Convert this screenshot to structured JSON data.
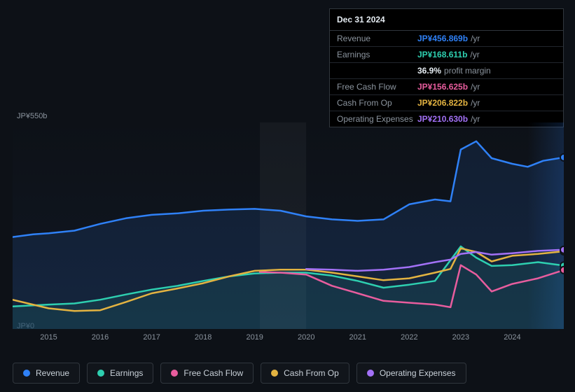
{
  "tooltip": {
    "date": "Dec 31 2024",
    "rows": [
      {
        "label": "Revenue",
        "value": "JP¥456.869b",
        "unit": "/yr",
        "color": "#2f81f7"
      },
      {
        "label": "Earnings",
        "value": "JP¥168.611b",
        "unit": "/yr",
        "color": "#2ecfb0"
      },
      {
        "label": "Free Cash Flow",
        "value": "JP¥156.625b",
        "unit": "/yr",
        "color": "#e85d9e"
      },
      {
        "label": "Cash From Op",
        "value": "JP¥206.822b",
        "unit": "/yr",
        "color": "#e3b341"
      },
      {
        "label": "Operating Expenses",
        "value": "JP¥210.630b",
        "unit": "/yr",
        "color": "#a371f7"
      }
    ],
    "profit_pct": "36.9%",
    "profit_label": "profit margin"
  },
  "chart": {
    "type": "line",
    "ylabel_top": "JP¥550b",
    "ylabel_bottom": "JP¥0",
    "ylim": [
      0,
      550
    ],
    "xlim": [
      2014.3,
      2025.0
    ],
    "xtick_years": [
      2015,
      2016,
      2017,
      2018,
      2019,
      2020,
      2021,
      2022,
      2023,
      2024
    ],
    "line_width": 2.5,
    "highlight_band": {
      "from": 2019.1,
      "to": 2020.0,
      "fill": "rgba(255,255,255,0.04)"
    },
    "end_highlight": {
      "from": 2024.3,
      "to": 2025.0
    },
    "background_color": "#0d1117",
    "series": [
      {
        "name": "Revenue",
        "color": "#2f81f7",
        "fill_opacity": 0.12,
        "points": [
          [
            2014.3,
            245
          ],
          [
            2014.7,
            252
          ],
          [
            2015.0,
            255
          ],
          [
            2015.5,
            262
          ],
          [
            2016.0,
            280
          ],
          [
            2016.5,
            295
          ],
          [
            2017.0,
            304
          ],
          [
            2017.5,
            308
          ],
          [
            2018.0,
            315
          ],
          [
            2018.5,
            318
          ],
          [
            2019.0,
            320
          ],
          [
            2019.5,
            315
          ],
          [
            2020.0,
            300
          ],
          [
            2020.5,
            292
          ],
          [
            2021.0,
            288
          ],
          [
            2021.5,
            292
          ],
          [
            2022.0,
            332
          ],
          [
            2022.5,
            345
          ],
          [
            2022.8,
            340
          ],
          [
            2023.0,
            478
          ],
          [
            2023.3,
            500
          ],
          [
            2023.6,
            455
          ],
          [
            2024.0,
            440
          ],
          [
            2024.3,
            432
          ],
          [
            2024.6,
            448
          ],
          [
            2025.0,
            457
          ]
        ],
        "marker_end": true
      },
      {
        "name": "Earnings",
        "color": "#2ecfb0",
        "fill_opacity": 0.1,
        "points": [
          [
            2014.3,
            60
          ],
          [
            2015.0,
            65
          ],
          [
            2015.5,
            68
          ],
          [
            2016.0,
            78
          ],
          [
            2016.5,
            92
          ],
          [
            2017.0,
            105
          ],
          [
            2017.5,
            115
          ],
          [
            2018.0,
            128
          ],
          [
            2018.5,
            140
          ],
          [
            2019.0,
            148
          ],
          [
            2019.5,
            150
          ],
          [
            2020.0,
            150
          ],
          [
            2020.5,
            142
          ],
          [
            2021.0,
            128
          ],
          [
            2021.5,
            110
          ],
          [
            2022.0,
            118
          ],
          [
            2022.5,
            128
          ],
          [
            2023.0,
            220
          ],
          [
            2023.3,
            190
          ],
          [
            2023.6,
            168
          ],
          [
            2024.0,
            170
          ],
          [
            2024.5,
            178
          ],
          [
            2025.0,
            169
          ]
        ],
        "marker_end": true
      },
      {
        "name": "Free Cash Flow",
        "color": "#e85d9e",
        "fill_opacity": 0.0,
        "points": [
          [
            2019.1,
            152
          ],
          [
            2019.5,
            150
          ],
          [
            2020.0,
            145
          ],
          [
            2020.5,
            115
          ],
          [
            2021.0,
            95
          ],
          [
            2021.5,
            75
          ],
          [
            2022.0,
            70
          ],
          [
            2022.5,
            65
          ],
          [
            2022.8,
            58
          ],
          [
            2023.0,
            170
          ],
          [
            2023.3,
            145
          ],
          [
            2023.6,
            100
          ],
          [
            2024.0,
            120
          ],
          [
            2024.5,
            135
          ],
          [
            2025.0,
            157
          ]
        ],
        "marker_end": true
      },
      {
        "name": "Cash From Op",
        "color": "#e3b341",
        "fill_opacity": 0.0,
        "points": [
          [
            2014.3,
            78
          ],
          [
            2015.0,
            55
          ],
          [
            2015.5,
            48
          ],
          [
            2016.0,
            50
          ],
          [
            2016.5,
            72
          ],
          [
            2017.0,
            95
          ],
          [
            2017.5,
            108
          ],
          [
            2018.0,
            122
          ],
          [
            2018.5,
            140
          ],
          [
            2019.0,
            155
          ],
          [
            2019.5,
            158
          ],
          [
            2020.0,
            158
          ],
          [
            2020.5,
            150
          ],
          [
            2021.0,
            140
          ],
          [
            2021.5,
            130
          ],
          [
            2022.0,
            135
          ],
          [
            2022.5,
            150
          ],
          [
            2022.8,
            160
          ],
          [
            2023.0,
            215
          ],
          [
            2023.3,
            205
          ],
          [
            2023.6,
            180
          ],
          [
            2024.0,
            195
          ],
          [
            2024.5,
            200
          ],
          [
            2025.0,
            207
          ]
        ],
        "marker_end": true
      },
      {
        "name": "Operating Expenses",
        "color": "#a371f7",
        "fill_opacity": 0.0,
        "points": [
          [
            2020.0,
            160
          ],
          [
            2020.5,
            158
          ],
          [
            2021.0,
            155
          ],
          [
            2021.5,
            158
          ],
          [
            2022.0,
            165
          ],
          [
            2022.5,
            178
          ],
          [
            2022.8,
            185
          ],
          [
            2023.0,
            200
          ],
          [
            2023.3,
            205
          ],
          [
            2023.6,
            198
          ],
          [
            2024.0,
            202
          ],
          [
            2024.5,
            208
          ],
          [
            2025.0,
            211
          ]
        ],
        "marker_end": true
      }
    ]
  },
  "legend": {
    "items": [
      {
        "label": "Revenue",
        "color": "#2f81f7"
      },
      {
        "label": "Earnings",
        "color": "#2ecfb0"
      },
      {
        "label": "Free Cash Flow",
        "color": "#e85d9e"
      },
      {
        "label": "Cash From Op",
        "color": "#e3b341"
      },
      {
        "label": "Operating Expenses",
        "color": "#a371f7"
      }
    ]
  }
}
